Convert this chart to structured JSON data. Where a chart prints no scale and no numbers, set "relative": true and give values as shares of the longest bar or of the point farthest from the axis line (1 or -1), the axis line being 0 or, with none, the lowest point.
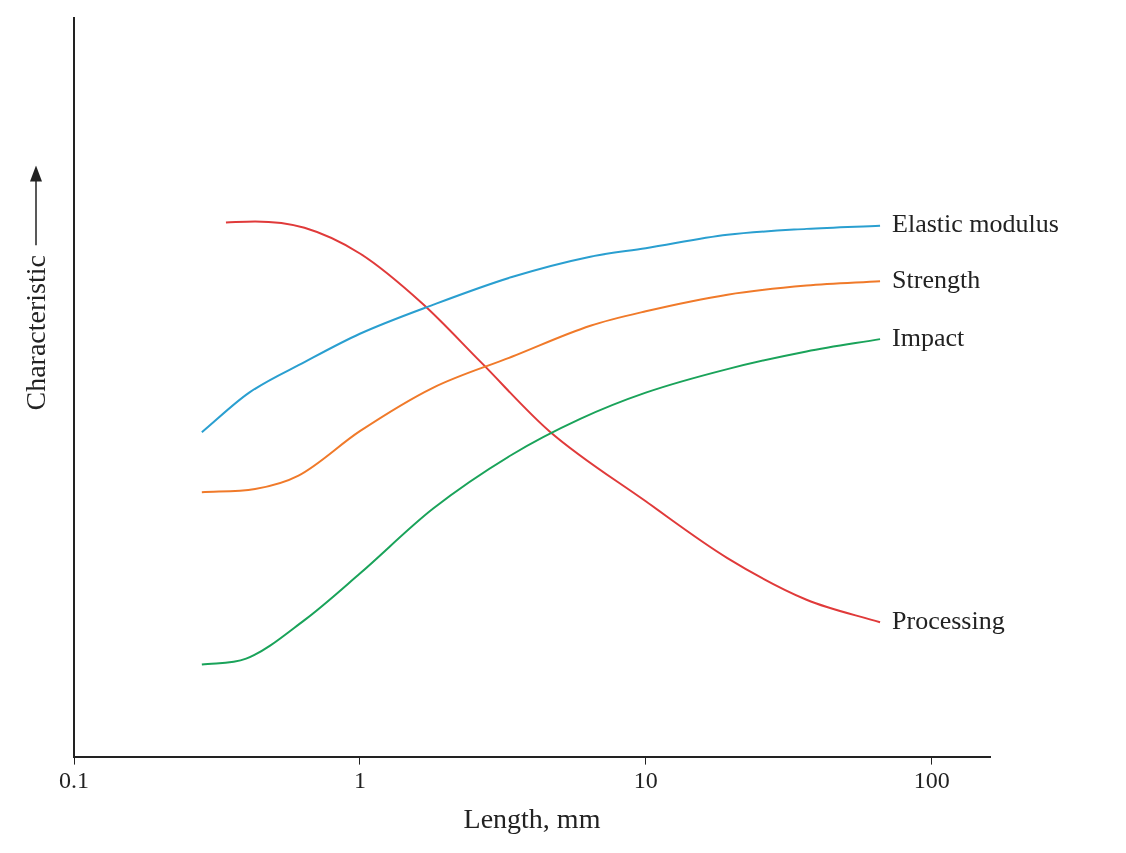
{
  "chart_data": {
    "type": "line",
    "xlabel": "Length, mm",
    "ylabel": "Characteristic",
    "log": "x",
    "xlim": [
      0.1,
      160
    ],
    "xticks": [
      0.1,
      1,
      10,
      100
    ],
    "relative": true,
    "grid": false,
    "legend": false,
    "marker": "none",
    "line_style": "solid",
    "series": [
      {
        "name": "Elastic modulus",
        "color": "#2a9fd0",
        "x": [
          0.28,
          0.41,
          0.64,
          1,
          1.8,
          3.4,
          6.4,
          10,
          19.3,
          36.5,
          66
        ],
        "values": [
          0.606,
          0.68,
          0.737,
          0.79,
          0.844,
          0.896,
          0.934,
          0.95,
          0.975,
          0.986,
          0.992
        ]
      },
      {
        "name": "Strength",
        "color": "#f07a2a",
        "x": [
          0.28,
          0.43,
          0.61,
          1,
          1.8,
          3.4,
          6.4,
          10,
          19.3,
          36.5,
          66
        ],
        "values": [
          0.494,
          0.5,
          0.525,
          0.608,
          0.689,
          0.747,
          0.805,
          0.832,
          0.863,
          0.88,
          0.888
        ]
      },
      {
        "name": "Impact",
        "color": "#1aa35a",
        "x": [
          0.28,
          0.4,
          0.64,
          1,
          1.8,
          3.4,
          5.9,
          10,
          19.3,
          36.5,
          66
        ],
        "values": [
          0.172,
          0.183,
          0.255,
          0.342,
          0.463,
          0.564,
          0.631,
          0.68,
          0.724,
          0.757,
          0.78
        ]
      },
      {
        "name": "Processing",
        "color": "#e03a3a",
        "x": [
          0.34,
          0.43,
          0.64,
          1,
          1.65,
          2.65,
          4.6,
          10,
          19.3,
          36.5,
          66
        ],
        "values": [
          0.998,
          1,
          0.988,
          0.94,
          0.847,
          0.737,
          0.608,
          0.477,
          0.371,
          0.293,
          0.251
        ]
      }
    ]
  }
}
